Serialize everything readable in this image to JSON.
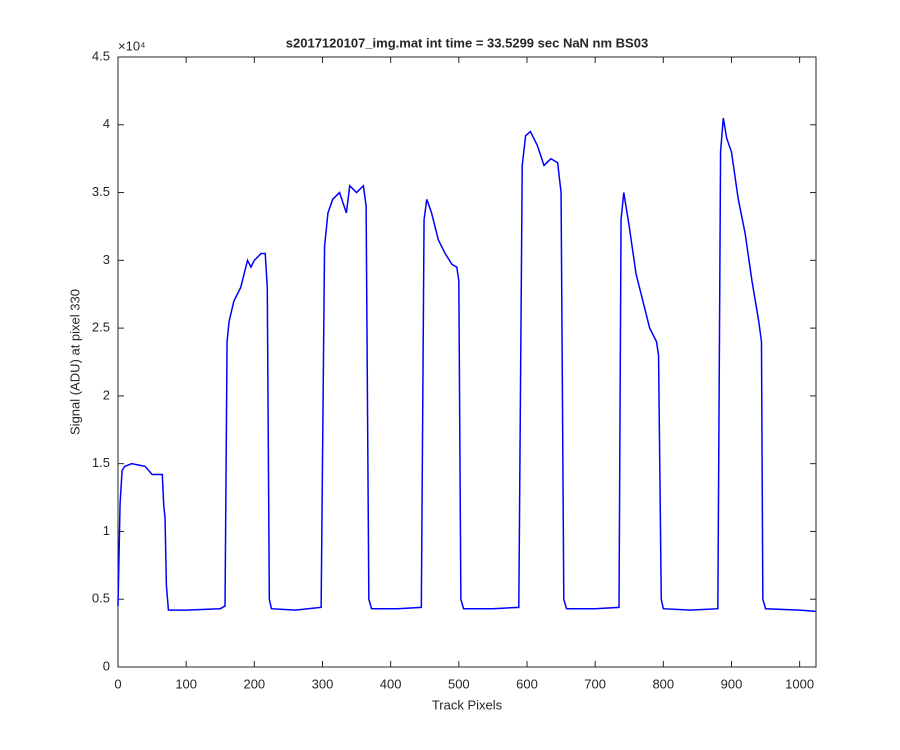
{
  "chart_data": {
    "type": "line",
    "title": "s2017120107_img.mat int time = 33.5299 sec  NaN nm BS03",
    "x_label": "Track Pixels",
    "y_label": "Signal (ADU) at pixel 330",
    "y_exponent": "×10⁴",
    "x": [
      0,
      3,
      6,
      10,
      20,
      30,
      40,
      50,
      60,
      65,
      67,
      69,
      71,
      74,
      100,
      150,
      157,
      160,
      163,
      170,
      180,
      190,
      195,
      200,
      210,
      216,
      219,
      222,
      225,
      260,
      298,
      303,
      308,
      315,
      325,
      335,
      340,
      350,
      360,
      364,
      368,
      372,
      410,
      445,
      449,
      453,
      460,
      470,
      480,
      490,
      497,
      500,
      503,
      507,
      550,
      588,
      593,
      598,
      605,
      615,
      625,
      635,
      645,
      650,
      654,
      658,
      700,
      735,
      738,
      742,
      750,
      760,
      770,
      780,
      790,
      793,
      797,
      800,
      840,
      880,
      884,
      888,
      893,
      900,
      910,
      920,
      930,
      940,
      944,
      946,
      950,
      1000,
      1024
    ],
    "series": [
      {
        "name": "signal",
        "color": "#0000ff",
        "values": [
          0.45,
          1.2,
          1.45,
          1.48,
          1.5,
          1.49,
          1.48,
          1.42,
          1.42,
          1.42,
          1.2,
          1.1,
          0.6,
          0.42,
          0.42,
          0.43,
          0.45,
          2.4,
          2.55,
          2.7,
          2.8,
          3.0,
          2.95,
          3.0,
          3.05,
          3.05,
          2.8,
          0.5,
          0.43,
          0.42,
          0.44,
          3.1,
          3.35,
          3.45,
          3.5,
          3.35,
          3.55,
          3.5,
          3.55,
          3.4,
          0.5,
          0.43,
          0.43,
          0.44,
          3.3,
          3.45,
          3.35,
          3.15,
          3.05,
          2.97,
          2.95,
          2.85,
          0.5,
          0.43,
          0.43,
          0.44,
          3.7,
          3.92,
          3.95,
          3.85,
          3.7,
          3.75,
          3.72,
          3.5,
          0.5,
          0.43,
          0.43,
          0.44,
          3.3,
          3.5,
          3.25,
          2.9,
          2.7,
          2.5,
          2.4,
          2.3,
          0.5,
          0.43,
          0.42,
          0.43,
          3.8,
          4.05,
          3.9,
          3.8,
          3.45,
          3.2,
          2.85,
          2.55,
          2.4,
          0.5,
          0.43,
          0.42,
          0.41
        ]
      }
    ],
    "xlim": [
      0,
      1024
    ],
    "xticks": [
      0,
      100,
      200,
      300,
      400,
      500,
      600,
      700,
      800,
      900,
      1000
    ],
    "ylim": [
      0,
      4.5
    ],
    "yticks": [
      0,
      0.5,
      1,
      1.5,
      2,
      2.5,
      3,
      3.5,
      4,
      4.5
    ]
  }
}
